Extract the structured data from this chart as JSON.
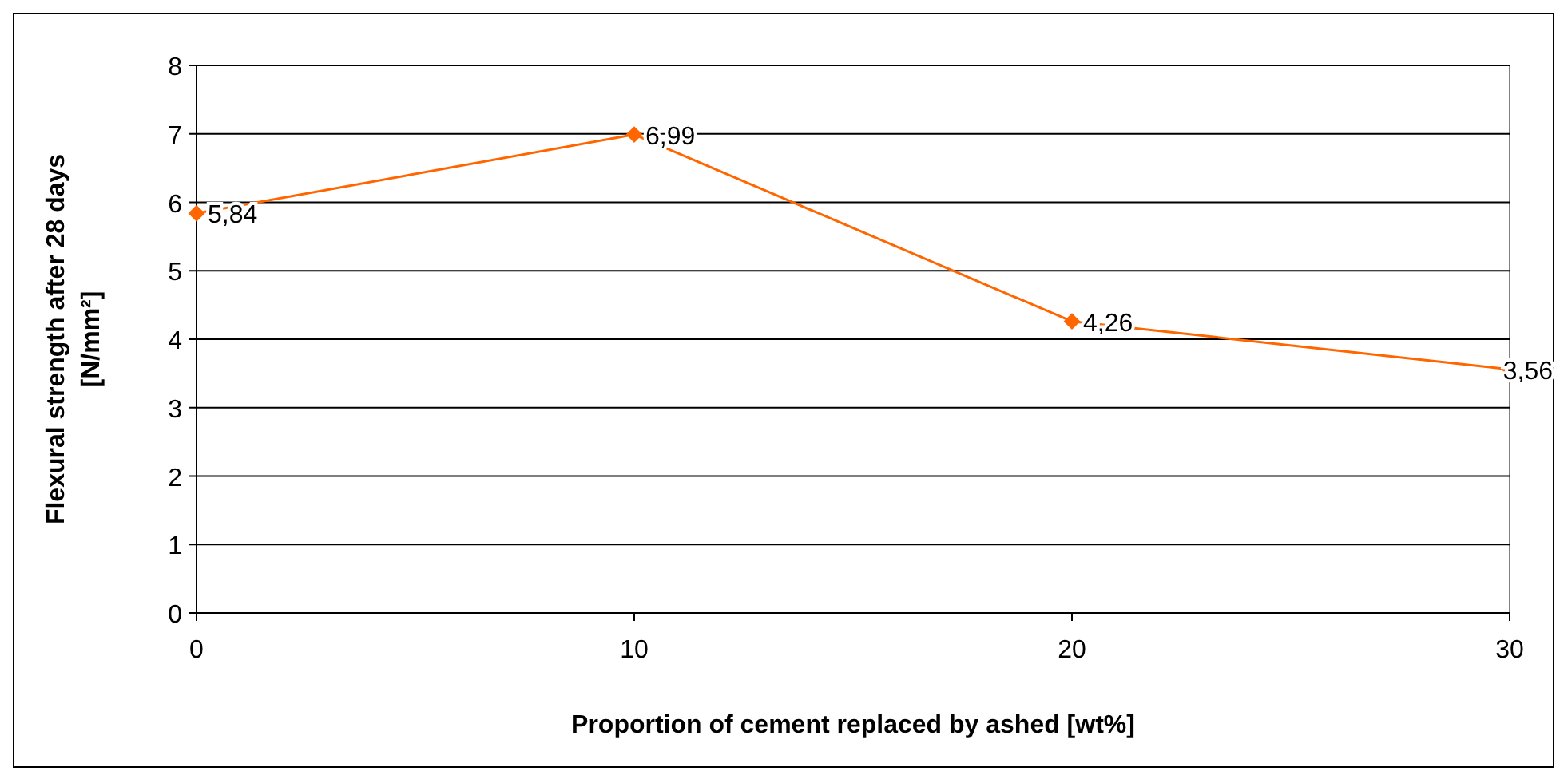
{
  "chart_data": {
    "type": "line",
    "xlabel": "Proportion of cement replaced by ashed [wt%]",
    "ylabel": "Flexural strength after 28 days\n[N/mm²]",
    "x": [
      0,
      10,
      20,
      30
    ],
    "series": [
      {
        "color": "#ff6600",
        "values": [
          5.84,
          6.99,
          4.26,
          3.56
        ],
        "value_labels": [
          "5,84",
          "6,99",
          "4,26",
          "3,56"
        ]
      }
    ],
    "xlim": [
      0,
      30
    ],
    "xticks": [
      0,
      10,
      20,
      30
    ],
    "ylim": [
      0,
      8
    ],
    "yticks": [
      0,
      1,
      2,
      3,
      4,
      5,
      6,
      7,
      8
    ],
    "grid": "y",
    "marker": "diamond",
    "line_style": "solid"
  }
}
